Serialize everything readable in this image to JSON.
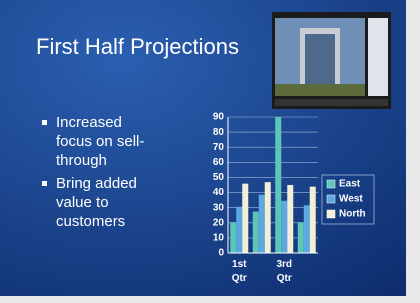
{
  "slide": {
    "title": "First Half Projections",
    "bullets": [
      "Increased focus on sell-through",
      "Bring added value to customers"
    ]
  },
  "chart_data": {
    "type": "bar",
    "categories": [
      "1st Qtr",
      null,
      "3rd Qtr",
      null
    ],
    "series": [
      {
        "name": "East",
        "color": "#5cc6b9",
        "values": [
          20.4,
          27.4,
          90,
          20.4
        ]
      },
      {
        "name": "West",
        "color": "#5aa9e2",
        "values": [
          30.6,
          38.6,
          34.6,
          31.6
        ]
      },
      {
        "name": "North",
        "color": "#f3efd6",
        "values": [
          45.9,
          46.9,
          45,
          43.9
        ]
      }
    ],
    "ylim": [
      0,
      90
    ],
    "yticks": [
      0,
      10,
      20,
      30,
      40,
      50,
      60,
      70,
      80,
      90
    ],
    "grid": true,
    "legend": "right"
  }
}
